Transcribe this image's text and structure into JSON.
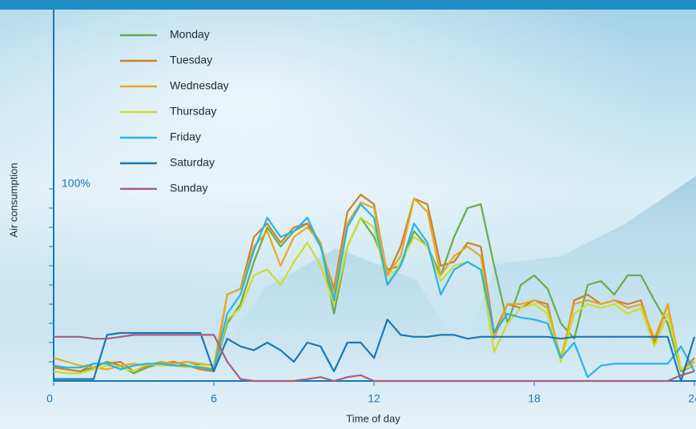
{
  "chart_data": {
    "type": "line",
    "x_label": "Time of day",
    "y_label": "Air consumption",
    "xlim": [
      0,
      24
    ],
    "xticks": [
      0,
      6,
      12,
      18,
      24
    ],
    "ylim": [
      0,
      100
    ],
    "yticks": [
      {
        "value": 100,
        "label": "100%"
      }
    ],
    "minor_yticks": [
      10,
      20,
      30,
      40,
      50,
      60,
      70,
      80,
      90
    ],
    "legend": "top-left",
    "x": [
      0,
      0.5,
      1,
      1.5,
      2,
      2.5,
      3,
      3.5,
      4,
      4.5,
      5,
      5.5,
      6,
      6.5,
      7,
      7.5,
      8,
      8.5,
      9,
      9.5,
      10,
      10.5,
      11,
      11.5,
      12,
      12.5,
      13,
      13.5,
      14,
      14.5,
      15,
      15.5,
      16,
      16.5,
      17,
      17.5,
      18,
      18.5,
      19,
      19.5,
      20,
      20.5,
      21,
      21.5,
      22,
      22.5,
      23,
      23.5,
      24
    ],
    "series": [
      {
        "name": "Monday",
        "color": "#6aab4e",
        "values": [
          8,
          6,
          5,
          7,
          10,
          8,
          4,
          7,
          9,
          9,
          10,
          8,
          5,
          30,
          40,
          62,
          80,
          70,
          78,
          82,
          72,
          35,
          70,
          85,
          75,
          58,
          60,
          78,
          70,
          55,
          75,
          90,
          92,
          60,
          30,
          50,
          55,
          48,
          30,
          22,
          50,
          52,
          45,
          55,
          55,
          42,
          30,
          5,
          8
        ]
      },
      {
        "name": "Tuesday",
        "color": "#c8822b",
        "values": [
          7,
          6,
          5,
          9,
          9,
          10,
          5,
          8,
          9,
          10,
          8,
          6,
          5,
          45,
          48,
          75,
          82,
          72,
          80,
          82,
          70,
          48,
          88,
          97,
          92,
          55,
          70,
          95,
          92,
          60,
          62,
          72,
          70,
          25,
          40,
          38,
          42,
          40,
          10,
          42,
          45,
          40,
          42,
          40,
          42,
          20,
          40,
          5,
          12
        ]
      },
      {
        "name": "Wednesday",
        "color": "#e5a920",
        "values": [
          12,
          10,
          8,
          7,
          6,
          8,
          9,
          8,
          10,
          9,
          10,
          9,
          8,
          45,
          48,
          70,
          78,
          60,
          75,
          80,
          72,
          45,
          82,
          93,
          90,
          55,
          65,
          95,
          88,
          55,
          65,
          70,
          65,
          22,
          40,
          40,
          42,
          38,
          12,
          40,
          42,
          40,
          42,
          38,
          40,
          22,
          40,
          6,
          10
        ]
      },
      {
        "name": "Thursday",
        "color": "#cddc2b",
        "values": [
          5,
          4,
          4,
          6,
          8,
          7,
          5,
          9,
          8,
          8,
          7,
          8,
          6,
          32,
          38,
          55,
          58,
          50,
          62,
          72,
          60,
          40,
          70,
          85,
          80,
          50,
          62,
          75,
          70,
          52,
          60,
          62,
          58,
          15,
          30,
          38,
          40,
          35,
          10,
          35,
          40,
          38,
          40,
          35,
          38,
          18,
          35,
          6,
          8
        ]
      },
      {
        "name": "Friday",
        "color": "#26b4e8",
        "values": [
          8,
          7,
          7,
          9,
          9,
          6,
          8,
          9,
          9,
          8,
          8,
          7,
          6,
          35,
          45,
          68,
          85,
          75,
          78,
          85,
          70,
          42,
          80,
          92,
          85,
          50,
          60,
          82,
          72,
          45,
          58,
          62,
          58,
          25,
          35,
          33,
          32,
          30,
          12,
          20,
          2,
          8,
          9,
          9,
          9,
          9,
          9,
          18,
          5
        ]
      },
      {
        "name": "Saturday",
        "color": "#1a78b4",
        "values": [
          1,
          1,
          1,
          1,
          24,
          25,
          25,
          25,
          25,
          25,
          25,
          25,
          5,
          22,
          18,
          16,
          20,
          16,
          10,
          20,
          18,
          5,
          20,
          20,
          12,
          32,
          24,
          23,
          23,
          24,
          24,
          22,
          23,
          23,
          23,
          23,
          23,
          23,
          22,
          23,
          23,
          23,
          23,
          23,
          23,
          23,
          23,
          0,
          23
        ]
      },
      {
        "name": "Sunday",
        "color": "#a4607e",
        "values": [
          23,
          23,
          23,
          22,
          22,
          23,
          24,
          24,
          24,
          24,
          24,
          24,
          24,
          10,
          1,
          0,
          0,
          0,
          0,
          1,
          2,
          0,
          2,
          3,
          0,
          0,
          0,
          0,
          0,
          0,
          0,
          0,
          0,
          0,
          0,
          0,
          0,
          0,
          0,
          0,
          0,
          0,
          0,
          0,
          0,
          0,
          0,
          3,
          5
        ]
      }
    ]
  }
}
